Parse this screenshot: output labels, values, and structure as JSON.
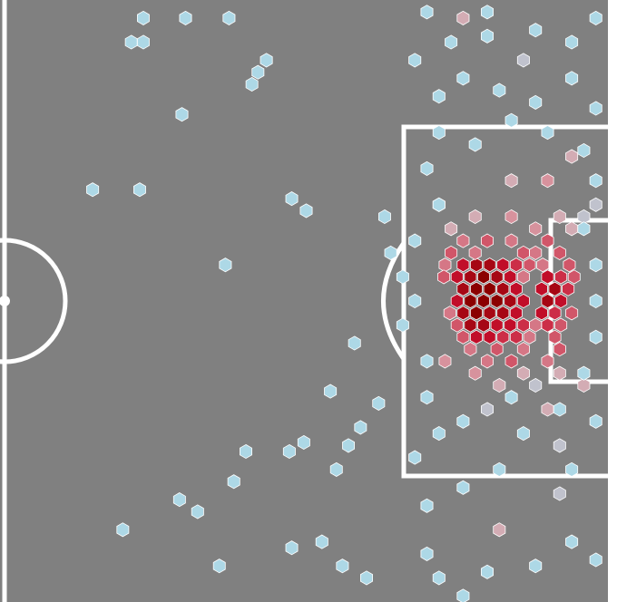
{
  "chart_data": {
    "type": "hexbin",
    "colorscale": [
      "#add8e6",
      "#d8a6ae",
      "#d46a7a",
      "#c8102e",
      "#8b0000"
    ],
    "clim": [
      1,
      10
    ],
    "xlim": [
      50,
      100
    ],
    "ylim": [
      0,
      100
    ],
    "x": [
      88,
      89.1,
      90.2,
      91.3,
      92.4,
      87.5,
      88.6,
      89.7,
      90.8,
      91.9,
      95,
      96.1,
      88,
      89.1,
      90.2,
      91.3,
      92.4,
      94.5,
      95.6,
      96.7,
      87.5,
      88.6,
      89.7,
      90.8,
      91.9,
      93,
      95,
      96.1,
      88,
      89.1,
      90.2,
      91.3,
      92.4,
      94.5,
      95.6,
      88.6,
      89.7,
      90.8,
      91.9,
      93,
      95,
      89.1,
      90.2,
      91.3,
      92.4,
      88,
      90,
      92,
      95,
      87,
      89,
      93,
      94,
      96,
      86.5,
      93.5,
      94.6,
      96.8,
      86.4,
      93,
      97.2,
      86.9,
      97,
      87.5,
      94,
      96.1,
      88,
      93.5,
      95.6,
      88.6,
      90.8,
      93,
      96,
      90,
      92,
      95,
      89,
      92,
      96,
      98,
      87,
      94,
      97,
      89,
      93,
      96,
      91,
      94,
      98,
      92,
      95,
      90,
      95,
      86,
      99,
      86.5,
      97,
      96,
      93,
      88,
      96,
      91,
      61.5,
      65,
      68.6,
      60.5,
      61.5,
      71.7,
      71,
      70.5,
      64.7,
      57.3,
      61.2,
      73.8,
      75,
      81.5,
      68.3,
      82,
      83,
      84,
      83,
      79,
      77,
      78.5,
      81,
      79.5,
      73.6,
      74.8,
      77.5,
      70,
      69,
      64.5,
      59.8,
      66,
      67.8,
      73.8,
      76.3,
      78,
      80,
      85,
      86,
      88,
      90,
      94,
      97,
      99,
      85,
      88,
      91,
      84,
      86,
      93,
      97,
      99,
      85,
      85,
      86,
      85,
      86,
      89,
      92,
      95,
      98,
      99,
      86,
      88,
      91,
      94,
      97,
      99,
      84,
      87,
      90,
      94,
      97,
      99,
      85,
      90,
      98,
      99,
      99,
      98,
      99,
      84,
      88,
      92,
      96
    ],
    "y": [
      44,
      44,
      44,
      44,
      44,
      46,
      46,
      46,
      46,
      46,
      46,
      46,
      48,
      48,
      48,
      48,
      48,
      48,
      48,
      48,
      50,
      50,
      50,
      50,
      50,
      50,
      50,
      50,
      52,
      52,
      52,
      52,
      52,
      52,
      52,
      54,
      54,
      54,
      54,
      54,
      54,
      56,
      56,
      56,
      56,
      40,
      40,
      40,
      40,
      42,
      42,
      42,
      42,
      42,
      44,
      44,
      44,
      44,
      46,
      46,
      46,
      52,
      52,
      54,
      54,
      54,
      56,
      56,
      56,
      58,
      58,
      58,
      58,
      60,
      60,
      60,
      36,
      36,
      36,
      36,
      38,
      38,
      38,
      62,
      62,
      62,
      64,
      64,
      64,
      30,
      30,
      68,
      68,
      34,
      34,
      60,
      26,
      74,
      10,
      3,
      82,
      88,
      3,
      3,
      3,
      7,
      7,
      10,
      12,
      14,
      19,
      31.5,
      31.5,
      33,
      35,
      36,
      44,
      42,
      46,
      50,
      54,
      57,
      65,
      74,
      67,
      71,
      75,
      73.5,
      78,
      75,
      80,
      83,
      88,
      85,
      94,
      91,
      90,
      94,
      96,
      92,
      96,
      99,
      95,
      94,
      90,
      93,
      84,
      81,
      78,
      76,
      72,
      72,
      78,
      70,
      66,
      60,
      34,
      28,
      22,
      24,
      20,
      22,
      25,
      30,
      16,
      13,
      15,
      17,
      13,
      18,
      10,
      7,
      6,
      5,
      7,
      3,
      2,
      2,
      38,
      44,
      56,
      62,
      50,
      40,
      70,
      66,
      68
    ],
    "values": [
      8,
      9,
      9,
      8,
      7,
      8,
      9,
      10,
      9,
      8,
      8,
      7,
      9,
      10,
      10,
      9,
      8,
      8,
      9,
      7,
      8,
      10,
      10,
      10,
      9,
      8,
      9,
      8,
      9,
      10,
      9,
      9,
      8,
      8,
      7,
      9,
      9,
      8,
      8,
      7,
      7,
      8,
      8,
      7,
      7,
      5,
      6,
      5,
      6,
      6,
      5,
      6,
      5,
      6,
      5,
      6,
      5,
      6,
      6,
      5,
      6,
      5,
      6,
      6,
      5,
      6,
      6,
      5,
      6,
      5,
      6,
      5,
      6,
      5,
      6,
      5,
      3,
      4,
      3,
      2,
      3,
      4,
      3,
      4,
      3,
      3,
      3,
      2,
      3,
      3,
      4,
      2,
      3,
      3,
      2,
      4,
      3,
      2,
      2,
      3,
      2,
      3,
      1,
      1,
      1,
      1,
      1,
      1,
      1,
      1,
      1,
      1,
      1,
      1,
      1,
      1,
      1,
      1,
      1,
      1,
      1,
      1,
      1,
      1,
      1,
      1,
      1,
      1,
      1,
      1,
      1,
      1,
      1,
      1,
      1,
      1,
      1,
      1,
      1,
      1,
      1,
      1,
      1,
      1,
      1,
      1,
      1,
      1,
      1,
      1,
      1,
      1,
      1,
      1,
      1,
      1,
      1,
      1,
      1,
      1,
      1,
      1,
      1,
      1,
      1,
      1,
      1,
      1,
      1,
      1,
      1,
      1,
      1,
      1,
      1,
      1,
      1,
      1,
      1,
      1,
      1,
      1,
      1,
      1,
      1,
      1,
      1
    ]
  }
}
